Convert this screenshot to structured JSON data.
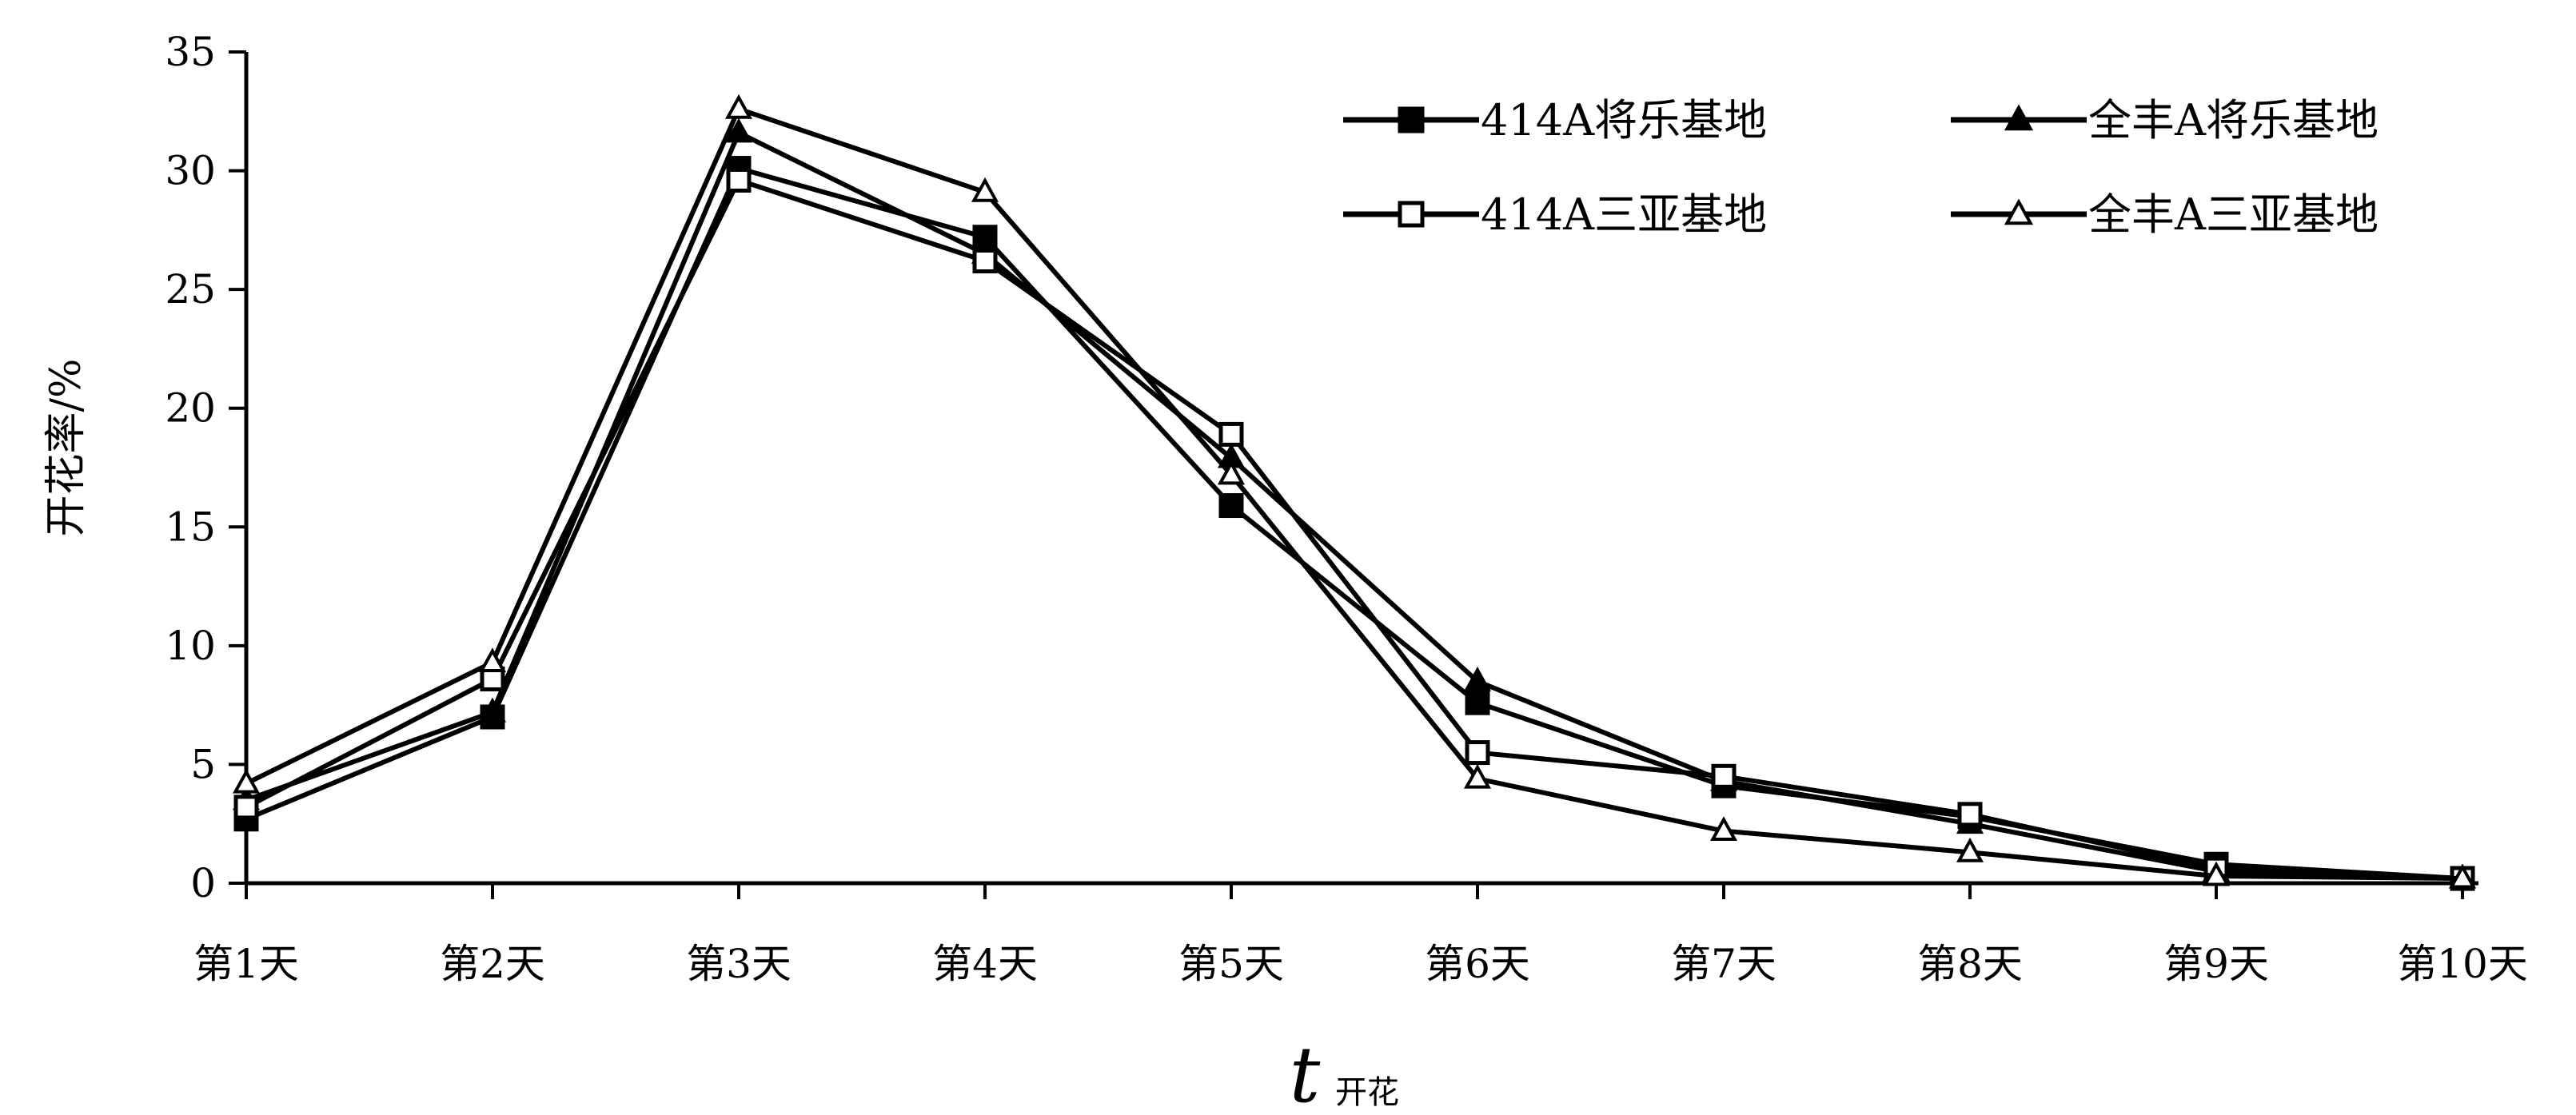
{
  "chart_data": {
    "type": "line",
    "ylabel": "开花率/%",
    "xlabel_main": "t",
    "xlabel_sub": "开花",
    "categories": [
      "第1天",
      "第2天",
      "第3天",
      "第4天",
      "第5天",
      "第6天",
      "第7天",
      "第8天",
      "第9天",
      "第10天"
    ],
    "ylim": [
      0,
      35
    ],
    "yticks": [
      "0",
      "5",
      "10",
      "15",
      "20",
      "25",
      "30",
      "35"
    ],
    "legend_position": "top-right",
    "series": [
      {
        "name": "414A将乐基地",
        "marker": "square-filled",
        "values": [
          2.7,
          7.0,
          30.1,
          27.2,
          15.9,
          7.6,
          4.1,
          2.8,
          0.8,
          0.2
        ]
      },
      {
        "name": "全丰A将乐基地",
        "marker": "triangle-filled",
        "values": [
          3.5,
          7.2,
          31.6,
          26.5,
          17.9,
          8.5,
          4.3,
          2.5,
          0.5,
          0.2
        ]
      },
      {
        "name": "414A三亚基地",
        "marker": "square-open",
        "values": [
          3.2,
          8.6,
          29.6,
          26.2,
          18.9,
          5.5,
          4.5,
          2.9,
          0.6,
          0.2
        ]
      },
      {
        "name": "全丰A三亚基地",
        "marker": "triangle-open",
        "values": [
          4.2,
          9.3,
          32.6,
          29.1,
          17.2,
          4.4,
          2.2,
          1.3,
          0.3,
          0.2
        ]
      }
    ]
  }
}
